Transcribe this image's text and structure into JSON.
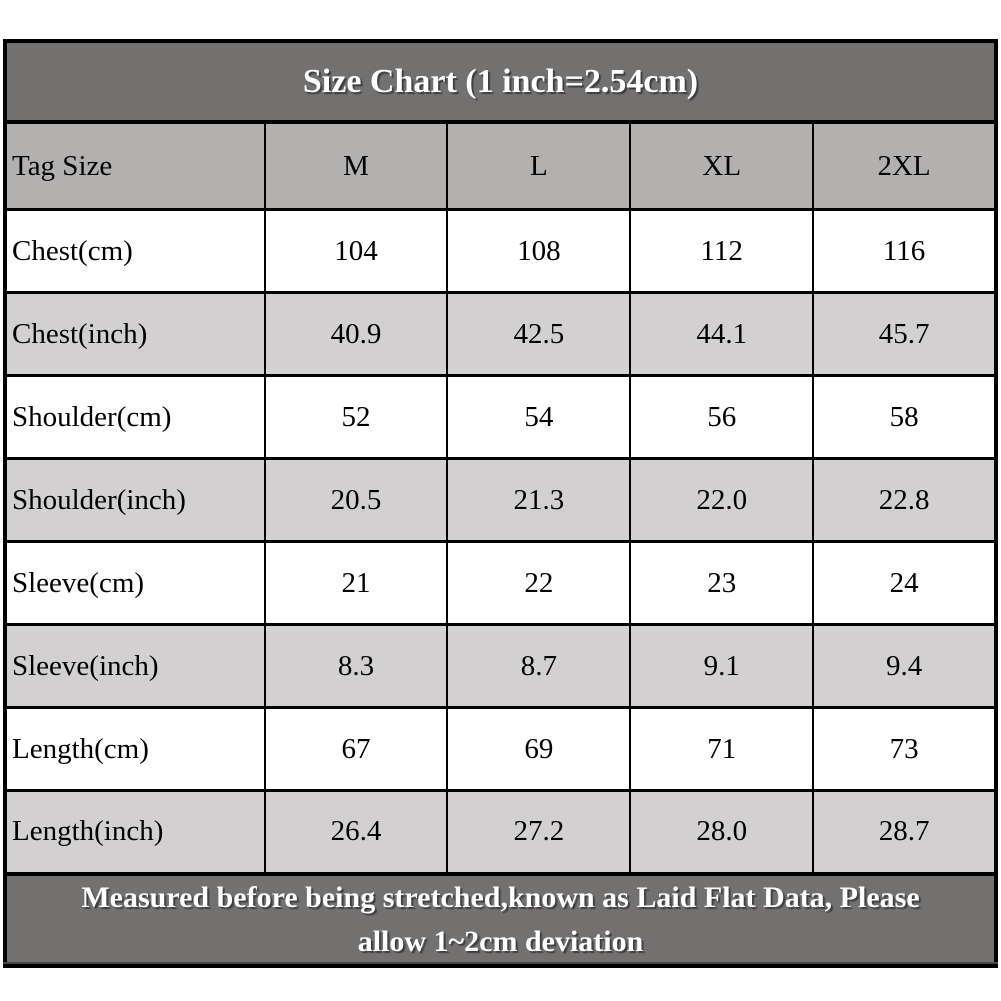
{
  "chart_data": {
    "type": "table",
    "title": "Size Chart (1 inch=2.54cm)",
    "columns": [
      "Tag Size",
      "M",
      "L",
      "XL",
      "2XL"
    ],
    "rows": [
      {
        "label": "Chest(cm)",
        "values": [
          "104",
          "108",
          "112",
          "116"
        ]
      },
      {
        "label": "Chest(inch)",
        "values": [
          "40.9",
          "42.5",
          "44.1",
          "45.7"
        ]
      },
      {
        "label": "Shoulder(cm)",
        "values": [
          "52",
          "54",
          "56",
          "58"
        ]
      },
      {
        "label": "Shoulder(inch)",
        "values": [
          "20.5",
          "21.3",
          "22.0",
          "22.8"
        ]
      },
      {
        "label": "Sleeve(cm)",
        "values": [
          "21",
          "22",
          "23",
          "24"
        ]
      },
      {
        "label": "Sleeve(inch)",
        "values": [
          "8.3",
          "8.7",
          "9.1",
          "9.4"
        ]
      },
      {
        "label": "Length(cm)",
        "values": [
          "67",
          "69",
          "71",
          "73"
        ]
      },
      {
        "label": "Length(inch)",
        "values": [
          "26.4",
          "27.2",
          "28.0",
          "28.7"
        ]
      }
    ],
    "footnote": "Measured before being stretched,known as Laid Flat Data, Please allow 1~2cm deviation",
    "footnote_lines": [
      "Measured before being stretched,known as Laid Flat Data, Please",
      "allow 1~2cm deviation"
    ],
    "layout_hints": {
      "grid": "on",
      "first_column_align": "left",
      "value_align": "center"
    }
  },
  "colors": {
    "title_bar_bg": "#737070",
    "header_row_bg": "#b3b0b0",
    "alt_row_bg": "#d2d0d0",
    "white_row_bg": "#ffffff",
    "border": "#000000",
    "title_text": "#ffffff",
    "cell_text": "#000000"
  }
}
